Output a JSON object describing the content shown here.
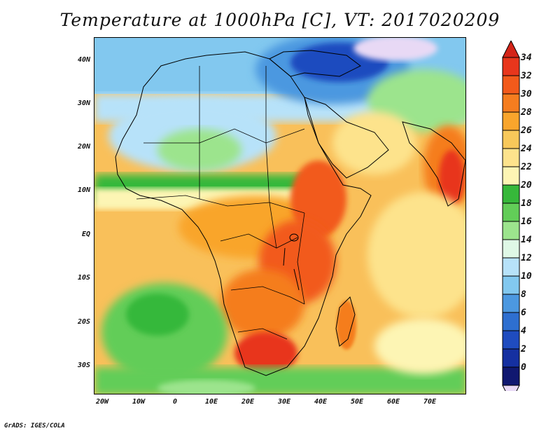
{
  "title": "Temperature at 1000hPa [C], VT: 2017020209",
  "credit": "GrADS: IGES/COLA",
  "lat_labels": [
    "40N",
    "30N",
    "20N",
    "10N",
    "EQ",
    "10S",
    "20S",
    "30S"
  ],
  "lon_labels": [
    "20W",
    "10W",
    "0",
    "10E",
    "20E",
    "30E",
    "40E",
    "50E",
    "60E",
    "70E"
  ],
  "colorbar": {
    "labels": [
      "34",
      "32",
      "30",
      "28",
      "26",
      "24",
      "22",
      "20",
      "18",
      "16",
      "14",
      "12",
      "10",
      "8",
      "6",
      "4",
      "2",
      "0"
    ],
    "colors": [
      "#e8361c",
      "#f25a1b",
      "#f57d1f",
      "#f9a52c",
      "#f8c85a",
      "#fde38c",
      "#fdf5b4",
      "#36b83a",
      "#62cd58",
      "#9ce48d",
      "#dff8e6",
      "#b7e2f9",
      "#82c8ef",
      "#4c98e0",
      "#2e6fd0",
      "#1f4cbf",
      "#1530a1",
      "#101870"
    ],
    "over_color": "#d42418",
    "under_color": "#e8d9f5"
  },
  "map_extent": {
    "lon": [
      -22,
      80
    ],
    "lat": [
      -37,
      45
    ]
  }
}
